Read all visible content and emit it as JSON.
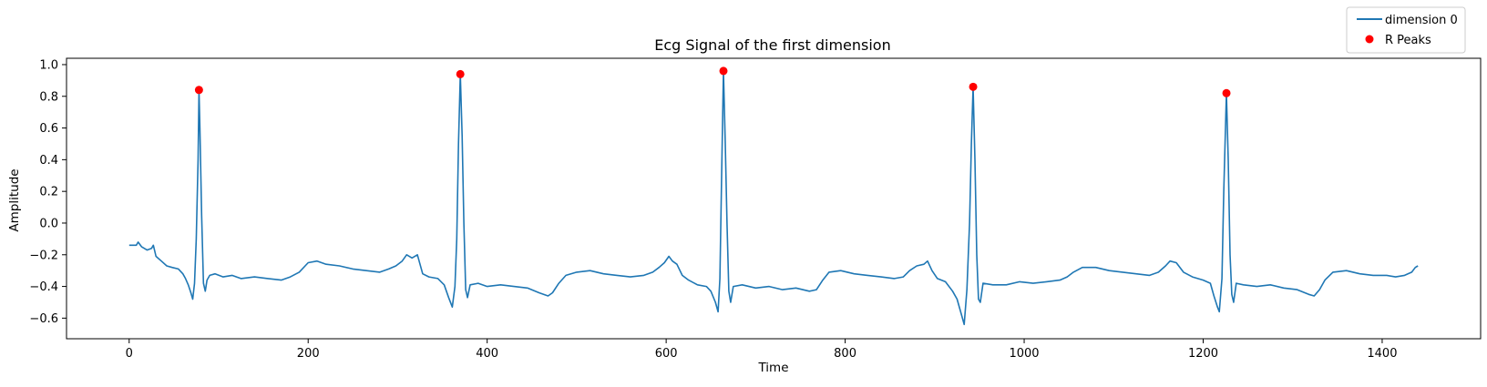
{
  "chart_data": {
    "type": "line",
    "title": "Ecg Signal of the first dimension",
    "xlabel": "Time",
    "ylabel": "Amplitude",
    "xlim": [
      -70,
      1510
    ],
    "ylim": [
      -0.73,
      1.04
    ],
    "xticks": [
      0,
      200,
      400,
      600,
      800,
      1000,
      1200,
      1400
    ],
    "yticks": [
      -0.6,
      -0.4,
      -0.2,
      0.0,
      0.2,
      0.4,
      0.6,
      0.8,
      1.0
    ],
    "xtick_labels": [
      "0",
      "200",
      "400",
      "600",
      "800",
      "1000",
      "1200",
      "1400"
    ],
    "ytick_labels": [
      "−0.6",
      "−0.4",
      "−0.2",
      "0.0",
      "0.2",
      "0.4",
      "0.6",
      "0.8",
      "1.0"
    ],
    "grid": false,
    "legend_position": "top-right (outside plot)",
    "series": [
      {
        "name": "dimension 0",
        "kind": "line",
        "color": "#1f77b4",
        "points": [
          [
            0,
            -0.14
          ],
          [
            8,
            -0.14
          ],
          [
            10,
            -0.12
          ],
          [
            14,
            -0.15
          ],
          [
            20,
            -0.17
          ],
          [
            25,
            -0.16
          ],
          [
            27,
            -0.14
          ],
          [
            30,
            -0.21
          ],
          [
            36,
            -0.24
          ],
          [
            42,
            -0.27
          ],
          [
            48,
            -0.28
          ],
          [
            55,
            -0.29
          ],
          [
            60,
            -0.32
          ],
          [
            63,
            -0.35
          ],
          [
            66,
            -0.39
          ],
          [
            69,
            -0.44
          ],
          [
            71,
            -0.48
          ],
          [
            73,
            -0.38
          ],
          [
            75,
            -0.1
          ],
          [
            77,
            0.4
          ],
          [
            78,
            0.84
          ],
          [
            79,
            0.6
          ],
          [
            81,
            0.05
          ],
          [
            83,
            -0.38
          ],
          [
            85,
            -0.43
          ],
          [
            87,
            -0.36
          ],
          [
            90,
            -0.33
          ],
          [
            96,
            -0.32
          ],
          [
            105,
            -0.34
          ],
          [
            115,
            -0.33
          ],
          [
            125,
            -0.35
          ],
          [
            140,
            -0.34
          ],
          [
            155,
            -0.35
          ],
          [
            170,
            -0.36
          ],
          [
            180,
            -0.34
          ],
          [
            190,
            -0.31
          ],
          [
            200,
            -0.25
          ],
          [
            210,
            -0.24
          ],
          [
            220,
            -0.26
          ],
          [
            235,
            -0.27
          ],
          [
            250,
            -0.29
          ],
          [
            265,
            -0.3
          ],
          [
            280,
            -0.31
          ],
          [
            290,
            -0.29
          ],
          [
            298,
            -0.27
          ],
          [
            305,
            -0.24
          ],
          [
            310,
            -0.2
          ],
          [
            316,
            -0.22
          ],
          [
            322,
            -0.2
          ],
          [
            328,
            -0.32
          ],
          [
            335,
            -0.34
          ],
          [
            345,
            -0.35
          ],
          [
            352,
            -0.39
          ],
          [
            357,
            -0.47
          ],
          [
            361,
            -0.53
          ],
          [
            364,
            -0.4
          ],
          [
            366,
            -0.1
          ],
          [
            368,
            0.5
          ],
          [
            370,
            0.94
          ],
          [
            372,
            0.55
          ],
          [
            374,
            0.0
          ],
          [
            376,
            -0.42
          ],
          [
            378,
            -0.47
          ],
          [
            381,
            -0.39
          ],
          [
            390,
            -0.38
          ],
          [
            400,
            -0.4
          ],
          [
            415,
            -0.39
          ],
          [
            430,
            -0.4
          ],
          [
            445,
            -0.41
          ],
          [
            458,
            -0.44
          ],
          [
            468,
            -0.46
          ],
          [
            473,
            -0.44
          ],
          [
            480,
            -0.38
          ],
          [
            488,
            -0.33
          ],
          [
            500,
            -0.31
          ],
          [
            515,
            -0.3
          ],
          [
            530,
            -0.32
          ],
          [
            545,
            -0.33
          ],
          [
            560,
            -0.34
          ],
          [
            575,
            -0.33
          ],
          [
            585,
            -0.31
          ],
          [
            592,
            -0.28
          ],
          [
            598,
            -0.25
          ],
          [
            603,
            -0.21
          ],
          [
            607,
            -0.24
          ],
          [
            612,
            -0.26
          ],
          [
            618,
            -0.33
          ],
          [
            625,
            -0.36
          ],
          [
            635,
            -0.39
          ],
          [
            645,
            -0.4
          ],
          [
            650,
            -0.43
          ],
          [
            655,
            -0.5
          ],
          [
            658,
            -0.56
          ],
          [
            660,
            -0.35
          ],
          [
            662,
            0.3
          ],
          [
            664,
            0.96
          ],
          [
            666,
            0.5
          ],
          [
            668,
            0.0
          ],
          [
            670,
            -0.43
          ],
          [
            672,
            -0.5
          ],
          [
            675,
            -0.4
          ],
          [
            685,
            -0.39
          ],
          [
            700,
            -0.41
          ],
          [
            715,
            -0.4
          ],
          [
            730,
            -0.42
          ],
          [
            745,
            -0.41
          ],
          [
            760,
            -0.43
          ],
          [
            768,
            -0.42
          ],
          [
            775,
            -0.36
          ],
          [
            782,
            -0.31
          ],
          [
            795,
            -0.3
          ],
          [
            810,
            -0.32
          ],
          [
            825,
            -0.33
          ],
          [
            840,
            -0.34
          ],
          [
            855,
            -0.35
          ],
          [
            865,
            -0.34
          ],
          [
            872,
            -0.3
          ],
          [
            880,
            -0.27
          ],
          [
            888,
            -0.26
          ],
          [
            892,
            -0.24
          ],
          [
            897,
            -0.3
          ],
          [
            903,
            -0.35
          ],
          [
            912,
            -0.37
          ],
          [
            920,
            -0.43
          ],
          [
            925,
            -0.48
          ],
          [
            930,
            -0.58
          ],
          [
            933,
            -0.64
          ],
          [
            936,
            -0.42
          ],
          [
            939,
            0.0
          ],
          [
            941,
            0.5
          ],
          [
            943,
            0.86
          ],
          [
            945,
            0.4
          ],
          [
            947,
            -0.2
          ],
          [
            949,
            -0.48
          ],
          [
            951,
            -0.5
          ],
          [
            954,
            -0.38
          ],
          [
            965,
            -0.39
          ],
          [
            980,
            -0.39
          ],
          [
            995,
            -0.37
          ],
          [
            1010,
            -0.38
          ],
          [
            1025,
            -0.37
          ],
          [
            1040,
            -0.36
          ],
          [
            1048,
            -0.34
          ],
          [
            1055,
            -0.31
          ],
          [
            1065,
            -0.28
          ],
          [
            1080,
            -0.28
          ],
          [
            1095,
            -0.3
          ],
          [
            1110,
            -0.31
          ],
          [
            1125,
            -0.32
          ],
          [
            1140,
            -0.33
          ],
          [
            1150,
            -0.31
          ],
          [
            1158,
            -0.27
          ],
          [
            1163,
            -0.24
          ],
          [
            1170,
            -0.25
          ],
          [
            1178,
            -0.31
          ],
          [
            1188,
            -0.34
          ],
          [
            1200,
            -0.36
          ],
          [
            1208,
            -0.38
          ],
          [
            1212,
            -0.46
          ],
          [
            1216,
            -0.53
          ],
          [
            1218,
            -0.56
          ],
          [
            1221,
            -0.35
          ],
          [
            1223,
            0.2
          ],
          [
            1226,
            0.82
          ],
          [
            1228,
            0.4
          ],
          [
            1230,
            -0.2
          ],
          [
            1232,
            -0.45
          ],
          [
            1234,
            -0.5
          ],
          [
            1237,
            -0.38
          ],
          [
            1245,
            -0.39
          ],
          [
            1260,
            -0.4
          ],
          [
            1275,
            -0.39
          ],
          [
            1290,
            -0.41
          ],
          [
            1305,
            -0.42
          ],
          [
            1318,
            -0.45
          ],
          [
            1324,
            -0.46
          ],
          [
            1330,
            -0.42
          ],
          [
            1336,
            -0.36
          ],
          [
            1345,
            -0.31
          ],
          [
            1360,
            -0.3
          ],
          [
            1375,
            -0.32
          ],
          [
            1390,
            -0.33
          ],
          [
            1405,
            -0.33
          ],
          [
            1415,
            -0.34
          ],
          [
            1425,
            -0.33
          ],
          [
            1433,
            -0.31
          ],
          [
            1437,
            -0.28
          ],
          [
            1440,
            -0.27
          ]
        ]
      },
      {
        "name": "R Peaks",
        "kind": "scatter",
        "color": "#ff0000",
        "points": [
          [
            78,
            0.84
          ],
          [
            370,
            0.94
          ],
          [
            664,
            0.96
          ],
          [
            943,
            0.86
          ],
          [
            1226,
            0.82
          ]
        ]
      }
    ]
  }
}
